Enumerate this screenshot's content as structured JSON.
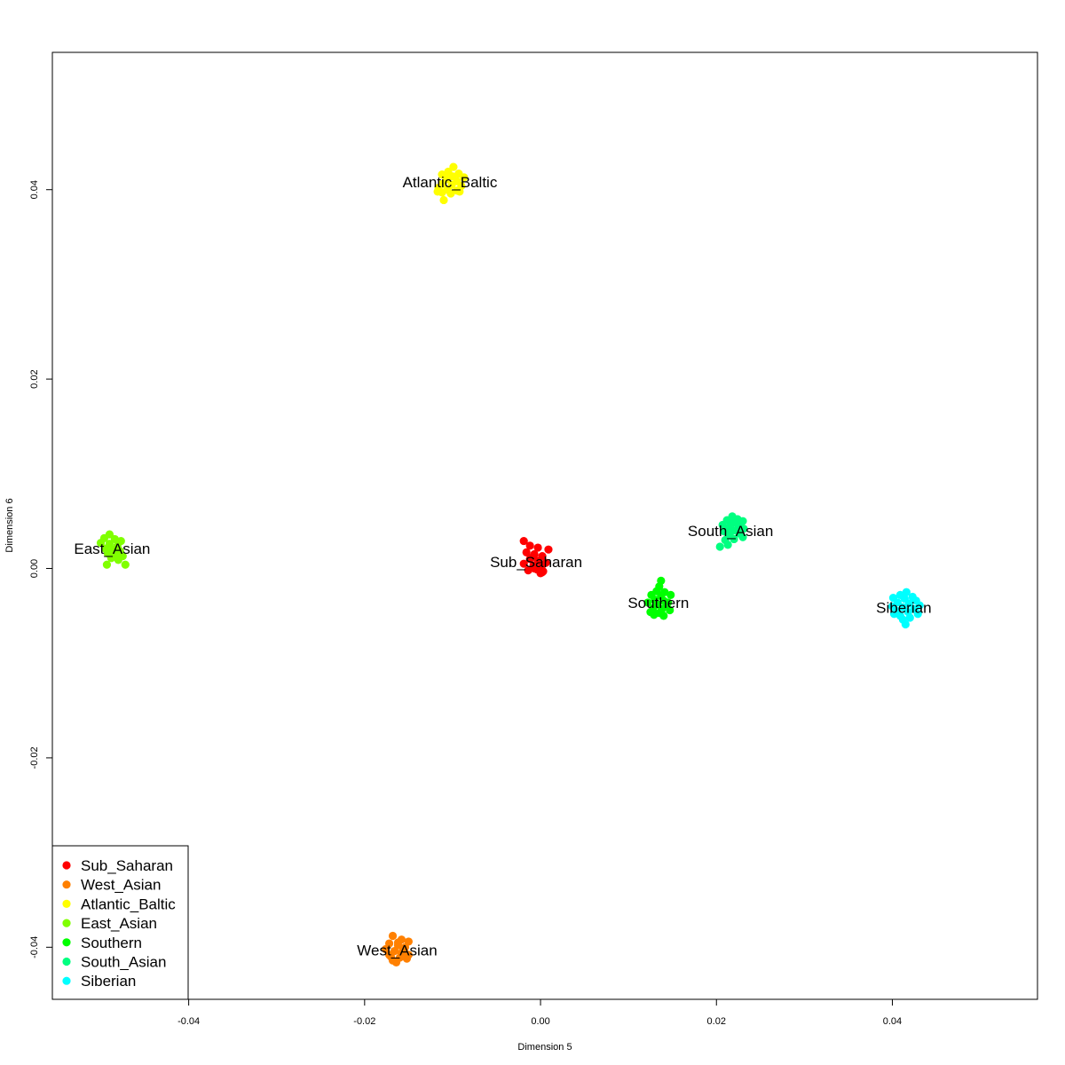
{
  "chart_data": {
    "type": "scatter",
    "xlabel": "Dimension 5",
    "ylabel": "Dimension 6",
    "xlim": [
      -0.0555,
      0.0565
    ],
    "ylim": [
      -0.0455,
      0.0545
    ],
    "x_ticks": [
      -0.04,
      -0.02,
      0.0,
      0.02,
      0.04
    ],
    "x_tick_labels": [
      "-0.04",
      "-0.02",
      "0.00",
      "0.02",
      "0.04"
    ],
    "y_ticks": [
      -0.04,
      -0.02,
      0.0,
      0.02,
      0.04
    ],
    "y_tick_labels": [
      "-0.04",
      "-0.02",
      "0.00",
      "0.02",
      "0.04"
    ],
    "grid": false,
    "legend_position": "bottom-left",
    "series": [
      {
        "name": "Sub_Saharan",
        "color": "#FF0000",
        "center": [
          -0.0005,
          0.0008
        ],
        "label_pos": [
          -0.0005,
          0.0007
        ],
        "points": [
          [
            -0.0019,
            0.0029
          ],
          [
            -0.0012,
            0.0024
          ],
          [
            -0.0003,
            0.0022
          ],
          [
            0.0009,
            0.002
          ],
          [
            -0.0016,
            0.0017
          ],
          [
            -0.0007,
            0.0015
          ],
          [
            0.0002,
            0.0013
          ],
          [
            -0.0012,
            0.001
          ],
          [
            -0.0003,
            0.0008
          ],
          [
            0.0006,
            0.0006
          ],
          [
            -0.0019,
            0.0005
          ],
          [
            -0.0008,
            0.0003
          ],
          [
            0.0001,
            0.0001
          ],
          [
            -0.0004,
            -0.0001
          ],
          [
            0.0003,
            -0.0003
          ],
          [
            -0.0014,
            -0.0002
          ],
          [
            -0.0007,
            0.0
          ],
          [
            0.0002,
            -0.0004
          ],
          [
            0.0,
            -0.0005
          ],
          [
            -0.0011,
            0.0011
          ]
        ]
      },
      {
        "name": "West_Asian",
        "color": "#FF8000",
        "center": [
          -0.0164,
          -0.0402
        ],
        "label_pos": [
          -0.0163,
          -0.0403
        ],
        "points": [
          [
            -0.0168,
            -0.0388
          ],
          [
            -0.0158,
            -0.0392
          ],
          [
            -0.015,
            -0.0394
          ],
          [
            -0.0172,
            -0.0396
          ],
          [
            -0.0162,
            -0.0398
          ],
          [
            -0.0154,
            -0.04
          ],
          [
            -0.0176,
            -0.0402
          ],
          [
            -0.0166,
            -0.0404
          ],
          [
            -0.0158,
            -0.0406
          ],
          [
            -0.015,
            -0.0408
          ],
          [
            -0.017,
            -0.041
          ],
          [
            -0.016,
            -0.0411
          ],
          [
            -0.0152,
            -0.0412
          ],
          [
            -0.0168,
            -0.0414
          ],
          [
            -0.0164,
            -0.0416
          ],
          [
            -0.0172,
            -0.0408
          ],
          [
            -0.0162,
            -0.0395
          ],
          [
            -0.0156,
            -0.0403
          ]
        ]
      },
      {
        "name": "Atlantic_Baltic",
        "color": "#FFFF00",
        "center": [
          -0.0105,
          0.0406
        ],
        "label_pos": [
          -0.0103,
          0.0408
        ],
        "points": [
          [
            -0.0099,
            0.0424
          ],
          [
            -0.0105,
            0.0419
          ],
          [
            -0.0093,
            0.0417
          ],
          [
            -0.0112,
            0.0416
          ],
          [
            -0.01,
            0.0414
          ],
          [
            -0.0087,
            0.0413
          ],
          [
            -0.0107,
            0.0411
          ],
          [
            -0.0095,
            0.0409
          ],
          [
            -0.0112,
            0.0406
          ],
          [
            -0.0101,
            0.0405
          ],
          [
            -0.009,
            0.0404
          ],
          [
            -0.0116,
            0.0402
          ],
          [
            -0.0106,
            0.04
          ],
          [
            -0.0095,
            0.0399
          ],
          [
            -0.0112,
            0.0397
          ],
          [
            -0.0102,
            0.0396
          ],
          [
            -0.0092,
            0.0398
          ],
          [
            -0.011,
            0.0389
          ],
          [
            -0.0117,
            0.0398
          ]
        ]
      },
      {
        "name": "East_Asian",
        "color": "#80FF00",
        "center": [
          -0.0488,
          0.0018
        ],
        "label_pos": [
          -0.0487,
          0.0021
        ],
        "points": [
          [
            -0.049,
            0.0036
          ],
          [
            -0.0496,
            0.0032
          ],
          [
            -0.0484,
            0.0031
          ],
          [
            -0.0477,
            0.0029
          ],
          [
            -0.05,
            0.0027
          ],
          [
            -0.049,
            0.0026
          ],
          [
            -0.0481,
            0.0024
          ],
          [
            -0.0495,
            0.0021
          ],
          [
            -0.0486,
            0.002
          ],
          [
            -0.0478,
            0.0018
          ],
          [
            -0.0492,
            0.0016
          ],
          [
            -0.0483,
            0.0015
          ],
          [
            -0.0475,
            0.0013
          ],
          [
            -0.0488,
            0.0011
          ],
          [
            -0.048,
            0.0009
          ],
          [
            -0.0472,
            0.0004
          ],
          [
            -0.0493,
            0.0004
          ],
          [
            -0.0479,
            0.0019
          ]
        ]
      },
      {
        "name": "Southern",
        "color": "#00FF00",
        "center": [
          0.0136,
          -0.0036
        ],
        "label_pos": [
          0.0134,
          -0.0036
        ],
        "points": [
          [
            0.0137,
            -0.0013
          ],
          [
            0.0135,
            -0.0019
          ],
          [
            0.0132,
            -0.0024
          ],
          [
            0.0141,
            -0.0025
          ],
          [
            0.0126,
            -0.0028
          ],
          [
            0.0137,
            -0.0029
          ],
          [
            0.0148,
            -0.0028
          ],
          [
            0.013,
            -0.0033
          ],
          [
            0.014,
            -0.0034
          ],
          [
            0.0122,
            -0.0036
          ],
          [
            0.0133,
            -0.0038
          ],
          [
            0.0143,
            -0.0039
          ],
          [
            0.0128,
            -0.0042
          ],
          [
            0.0138,
            -0.0043
          ],
          [
            0.0147,
            -0.0044
          ],
          [
            0.0125,
            -0.0046
          ],
          [
            0.0135,
            -0.0047
          ],
          [
            0.014,
            -0.005
          ],
          [
            0.0129,
            -0.0049
          ],
          [
            0.0145,
            -0.0036
          ]
        ]
      },
      {
        "name": "South_Asian",
        "color": "#00FF80",
        "center": [
          0.0216,
          0.0039
        ],
        "label_pos": [
          0.0216,
          0.004
        ],
        "points": [
          [
            0.0218,
            0.0055
          ],
          [
            0.0224,
            0.0052
          ],
          [
            0.0212,
            0.0051
          ],
          [
            0.023,
            0.005
          ],
          [
            0.0218,
            0.0048
          ],
          [
            0.0207,
            0.0046
          ],
          [
            0.0225,
            0.0045
          ],
          [
            0.0214,
            0.0043
          ],
          [
            0.0231,
            0.0042
          ],
          [
            0.022,
            0.004
          ],
          [
            0.0209,
            0.0039
          ],
          [
            0.0226,
            0.0037
          ],
          [
            0.0215,
            0.0035
          ],
          [
            0.023,
            0.0033
          ],
          [
            0.022,
            0.0031
          ],
          [
            0.021,
            0.003
          ],
          [
            0.0213,
            0.0025
          ],
          [
            0.0204,
            0.0023
          ]
        ]
      },
      {
        "name": "Siberian",
        "color": "#00FFFF",
        "center": [
          0.0412,
          -0.004
        ],
        "label_pos": [
          0.0413,
          -0.0041
        ],
        "points": [
          [
            0.0416,
            -0.0025
          ],
          [
            0.0409,
            -0.0028
          ],
          [
            0.0423,
            -0.003
          ],
          [
            0.0401,
            -0.0031
          ],
          [
            0.0414,
            -0.0032
          ],
          [
            0.0427,
            -0.0034
          ],
          [
            0.0406,
            -0.0036
          ],
          [
            0.0419,
            -0.0037
          ],
          [
            0.0431,
            -0.0039
          ],
          [
            0.04,
            -0.004
          ],
          [
            0.0412,
            -0.0041
          ],
          [
            0.0425,
            -0.0043
          ],
          [
            0.0405,
            -0.0045
          ],
          [
            0.0418,
            -0.0046
          ],
          [
            0.0429,
            -0.0048
          ],
          [
            0.0409,
            -0.005
          ],
          [
            0.042,
            -0.0052
          ],
          [
            0.0412,
            -0.0054
          ],
          [
            0.0415,
            -0.0059
          ],
          [
            0.0402,
            -0.0048
          ]
        ]
      }
    ]
  }
}
